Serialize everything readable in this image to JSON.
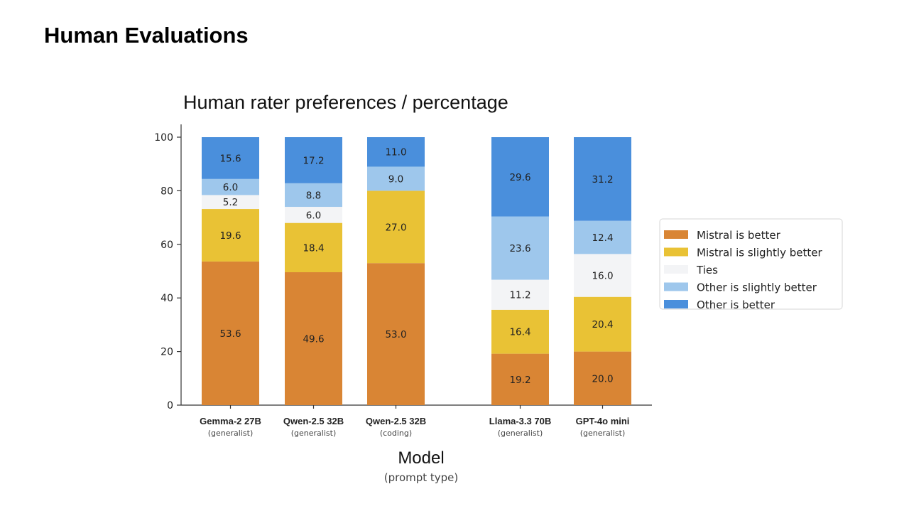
{
  "page": {
    "title": "Human Evaluations"
  },
  "chart_data": {
    "type": "bar",
    "stacked": true,
    "title": "Human rater preferences / percentage",
    "xlabel": "Model",
    "xlabel_sub": "(prompt type)",
    "ylabel": "",
    "ylim": [
      0,
      100
    ],
    "yticks": [
      0,
      20,
      40,
      60,
      80,
      100
    ],
    "grid": false,
    "legend_position": "right",
    "categories": [
      {
        "name": "Gemma-2 27B",
        "sub": "(generalist)"
      },
      {
        "name": "Qwen-2.5 32B",
        "sub": "(generalist)"
      },
      {
        "name": "Qwen-2.5 32B",
        "sub": "(coding)"
      },
      {
        "name": "Llama-3.3 70B",
        "sub": "(generalist)"
      },
      {
        "name": "GPT-4o mini",
        "sub": "(generalist)"
      }
    ],
    "series": [
      {
        "name": "Mistral is better",
        "color": "#d98534",
        "values": [
          53.6,
          49.6,
          53.0,
          19.2,
          20.0
        ]
      },
      {
        "name": "Mistral is slightly better",
        "color": "#e9c235",
        "values": [
          19.6,
          18.4,
          27.0,
          16.4,
          20.4
        ]
      },
      {
        "name": "Ties",
        "color": "#f3f4f6",
        "values": [
          5.2,
          6.0,
          0,
          11.2,
          16.0
        ]
      },
      {
        "name": "Other is slightly better",
        "color": "#9ec7ec",
        "values": [
          6.0,
          8.8,
          9.0,
          23.6,
          12.4
        ]
      },
      {
        "name": "Other is better",
        "color": "#4a8fdc",
        "values": [
          15.6,
          17.2,
          11.0,
          29.6,
          31.2
        ]
      }
    ]
  }
}
